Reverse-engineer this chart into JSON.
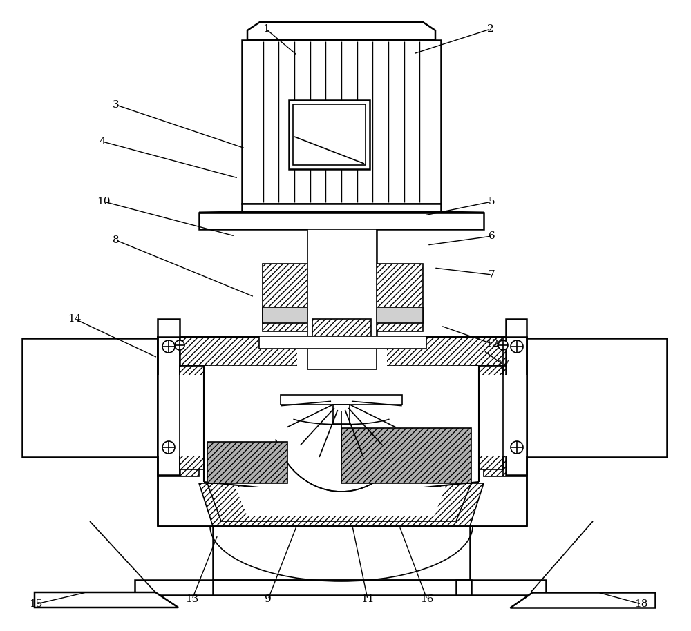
{
  "bg_color": "#ffffff",
  "lc": "#000000",
  "fig_w": 10.0,
  "fig_h": 9.14,
  "dpi": 100,
  "labels": [
    [
      "1",
      385,
      42,
      430,
      80
    ],
    [
      "2",
      710,
      42,
      598,
      78
    ],
    [
      "3",
      168,
      152,
      355,
      215
    ],
    [
      "4",
      148,
      205,
      345,
      258
    ],
    [
      "5",
      712,
      292,
      614,
      312
    ],
    [
      "6",
      712,
      342,
      618,
      355
    ],
    [
      "7",
      712,
      398,
      628,
      388
    ],
    [
      "8",
      168,
      348,
      368,
      430
    ],
    [
      "9",
      388,
      868,
      430,
      760
    ],
    [
      "10",
      150,
      292,
      340,
      342
    ],
    [
      "11",
      532,
      868,
      510,
      762
    ],
    [
      "12",
      712,
      498,
      638,
      472
    ],
    [
      "13",
      278,
      868,
      315,
      775
    ],
    [
      "14",
      108,
      462,
      228,
      518
    ],
    [
      "15",
      52,
      875,
      125,
      858
    ],
    [
      "16",
      618,
      868,
      578,
      762
    ],
    [
      "17",
      728,
      528,
      700,
      508
    ],
    [
      "18",
      928,
      875,
      865,
      858
    ]
  ]
}
